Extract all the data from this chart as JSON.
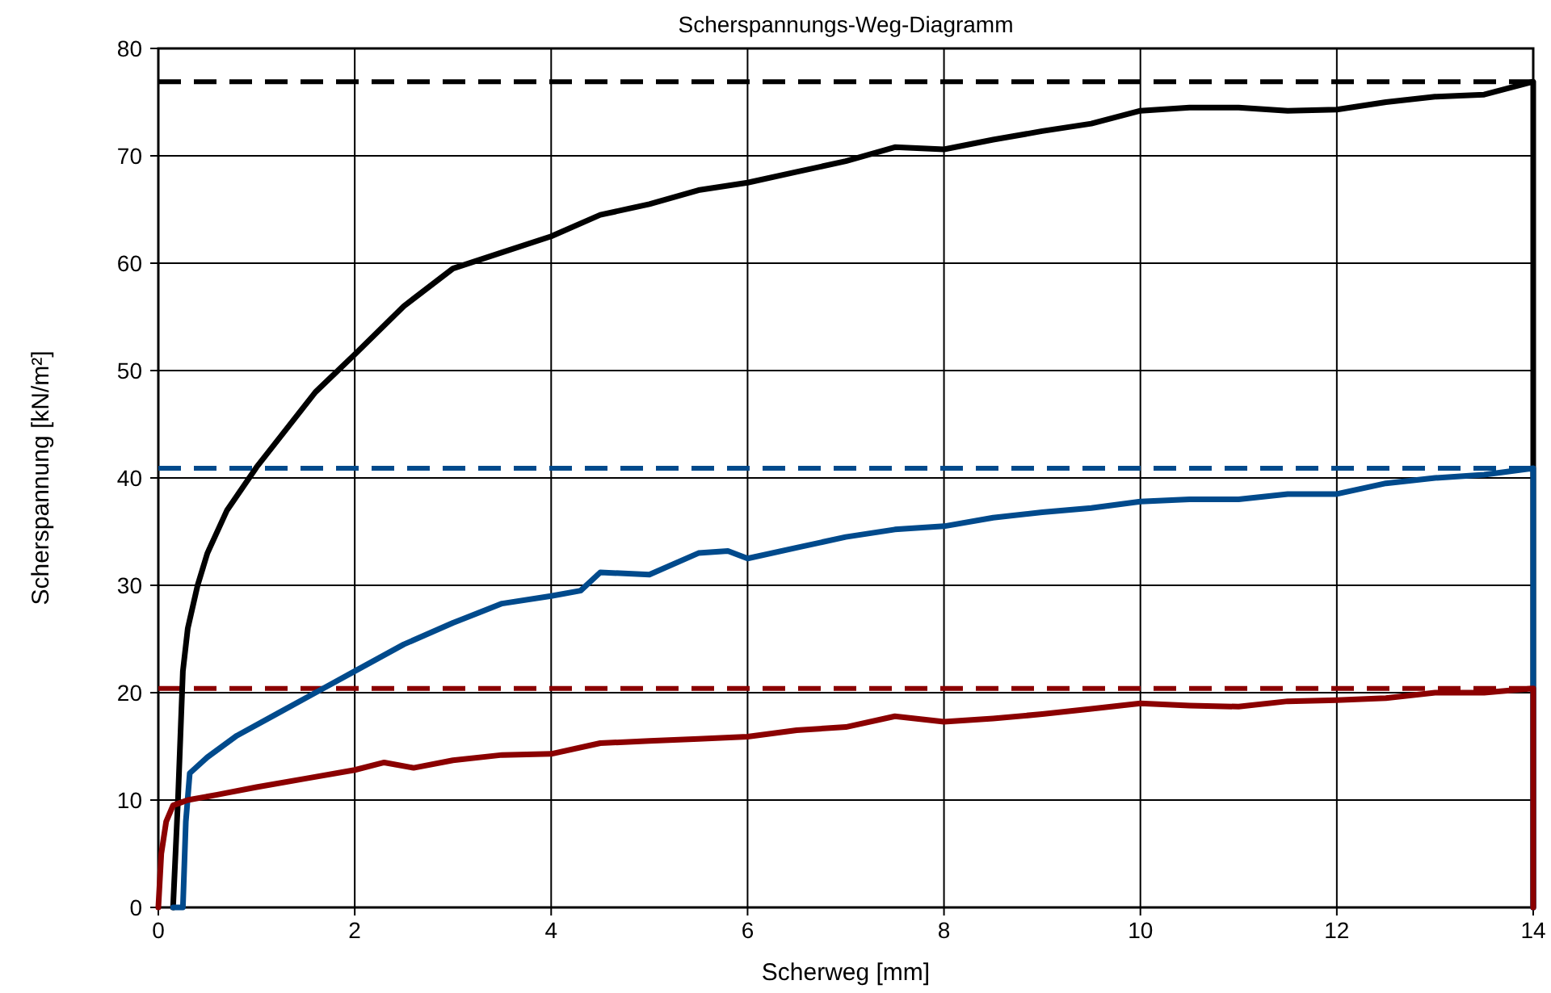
{
  "chart_data": {
    "type": "line",
    "title": "Scherspannungs-Weg-Diagramm",
    "xlabel": "Scherweg [mm]",
    "ylabel": "Scherspannung [kN/m²]",
    "xlim": [
      0,
      14
    ],
    "ylim": [
      0,
      80
    ],
    "xticks": [
      0,
      2,
      4,
      6,
      8,
      10,
      12,
      14
    ],
    "yticks": [
      0,
      10,
      20,
      30,
      40,
      50,
      60,
      70,
      80
    ],
    "grid": true,
    "marker": "none",
    "line_style": "solid",
    "series": [
      {
        "color": "#000000",
        "x": [
          0.15,
          0.2,
          0.25,
          0.3,
          0.4,
          0.5,
          0.7,
          1.0,
          1.3,
          1.6,
          2.0,
          2.5,
          3,
          3.5,
          4,
          4.5,
          5,
          5.5,
          6,
          6.5,
          7,
          7.5,
          8,
          8.5,
          9,
          9.5,
          10,
          10.5,
          11,
          11.5,
          12,
          12.5,
          13,
          13.5,
          14,
          14
        ],
        "values": [
          0,
          10,
          22,
          26,
          30,
          33,
          37,
          41,
          44.5,
          48,
          51.5,
          56,
          59.5,
          61,
          62.5,
          64.5,
          65.5,
          66.8,
          67.5,
          68.5,
          69.5,
          70.8,
          70.6,
          71.5,
          72.3,
          73,
          74.2,
          74.5,
          74.5,
          74.2,
          74.3,
          75,
          75.5,
          75.7,
          76.9,
          0
        ]
      },
      {
        "color": "#004a8c",
        "x": [
          0.15,
          0.25,
          0.28,
          0.32,
          0.5,
          0.8,
          1.2,
          1.6,
          2,
          2.5,
          3,
          3.5,
          4,
          4.3,
          4.5,
          5,
          5.5,
          5.8,
          6,
          6.5,
          7,
          7.5,
          8,
          8.5,
          9,
          9.5,
          10,
          10.5,
          11,
          11.5,
          12,
          12.5,
          13,
          13.5,
          14,
          14
        ],
        "values": [
          0,
          0,
          8,
          12.5,
          14,
          16,
          18,
          20,
          22,
          24.5,
          26.5,
          28.3,
          29,
          29.5,
          31.2,
          31,
          33,
          33.2,
          32.5,
          33.5,
          34.5,
          35.2,
          35.5,
          36.3,
          36.8,
          37.2,
          37.8,
          38,
          38,
          38.5,
          38.5,
          39.5,
          40,
          40.3,
          40.9,
          0
        ]
      },
      {
        "color": "#8b0000",
        "x": [
          0,
          0.03,
          0.08,
          0.15,
          0.3,
          0.6,
          1,
          1.5,
          2,
          2.3,
          2.6,
          3,
          3.5,
          4,
          4.5,
          5,
          5.5,
          6,
          6.5,
          7,
          7.5,
          8,
          8.5,
          9,
          9.5,
          10,
          10.5,
          11,
          11.5,
          12,
          12.5,
          13,
          13.5,
          14,
          14
        ],
        "values": [
          0,
          5,
          8,
          9.5,
          10,
          10.5,
          11.2,
          12,
          12.8,
          13.5,
          13,
          13.7,
          14.2,
          14.3,
          15.3,
          15.5,
          15.7,
          15.9,
          16.5,
          16.8,
          17.8,
          17.3,
          17.6,
          18,
          18.5,
          19,
          18.8,
          18.7,
          19.2,
          19.3,
          19.5,
          20,
          20,
          20.4,
          0
        ]
      }
    ],
    "ref_lines": [
      {
        "axis": "y",
        "value": 76.9,
        "color": "#000000",
        "line_style": "dashed"
      },
      {
        "axis": "y",
        "value": 40.9,
        "color": "#004a8c",
        "line_style": "dashed"
      },
      {
        "axis": "y",
        "value": 20.4,
        "color": "#8b0000",
        "line_style": "dashed"
      }
    ]
  }
}
